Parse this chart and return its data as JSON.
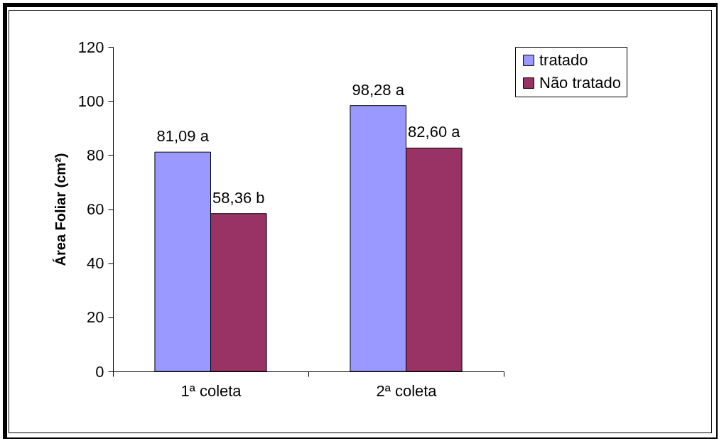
{
  "chart_data": {
    "type": "bar",
    "ylabel": "Área Foliar (cm²)",
    "categories": [
      "1ª coleta",
      "2ª coleta"
    ],
    "series": [
      {
        "name": "tratado",
        "color": "#9999ff",
        "values": [
          81.09,
          98.28
        ],
        "value_labels": [
          "81,09 a",
          "98,28 a"
        ]
      },
      {
        "name": "Não tratado",
        "color": "#993366",
        "values": [
          58.36,
          82.6
        ],
        "value_labels": [
          "58,36 b",
          "82,60 a"
        ]
      }
    ],
    "ylim": [
      0,
      120
    ],
    "yticks": [
      0,
      20,
      40,
      60,
      80,
      100,
      120
    ],
    "grid": false,
    "legend": "right"
  }
}
